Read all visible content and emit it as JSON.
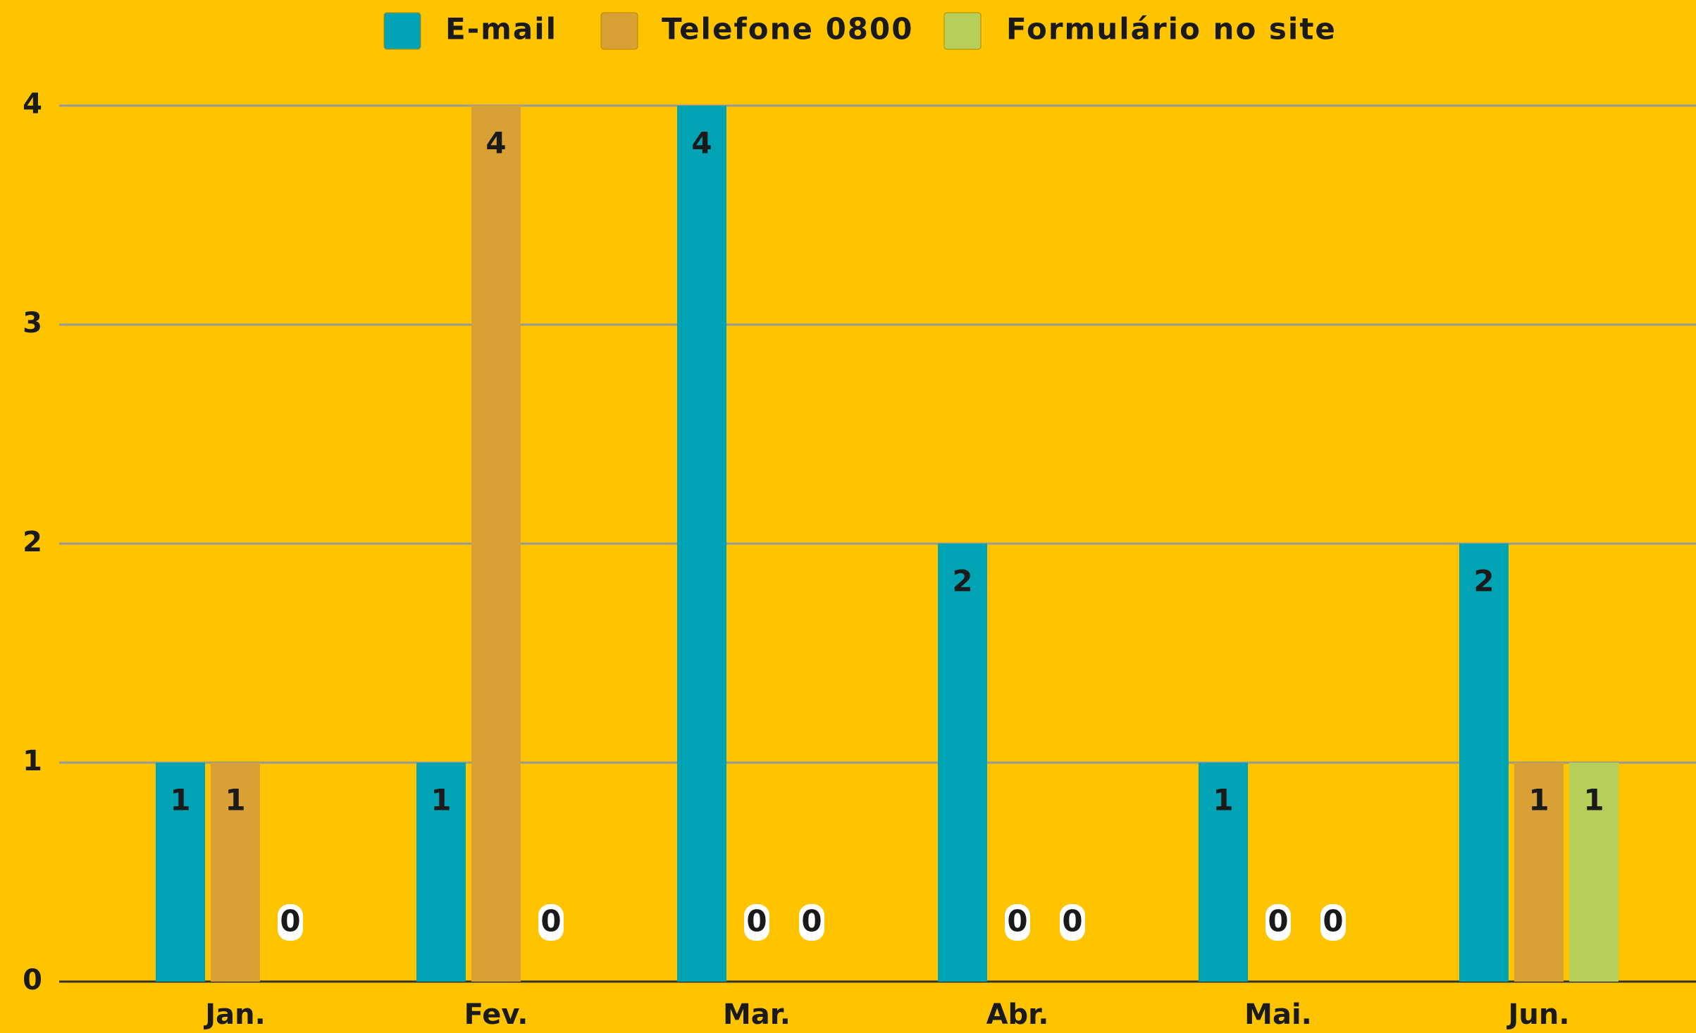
{
  "chart_data": {
    "type": "bar",
    "categories": [
      "Jan.",
      "Fev.",
      "Mar.",
      "Abr.",
      "Mai.",
      "Jun."
    ],
    "series": [
      {
        "name": "E-mail",
        "color": "#00a3b4",
        "values": [
          1,
          1,
          4,
          2,
          1,
          2
        ]
      },
      {
        "name": "Telefone 0800",
        "color": "#d9a036",
        "values": [
          1,
          4,
          0,
          0,
          0,
          1
        ]
      },
      {
        "name": "Formulário no site",
        "color": "#b5cf5a",
        "values": [
          0,
          0,
          0,
          0,
          0,
          1
        ]
      }
    ],
    "ylim": [
      0,
      4
    ],
    "yticks": [
      0,
      1,
      2,
      3,
      4
    ],
    "grid": true,
    "legend": "top"
  }
}
